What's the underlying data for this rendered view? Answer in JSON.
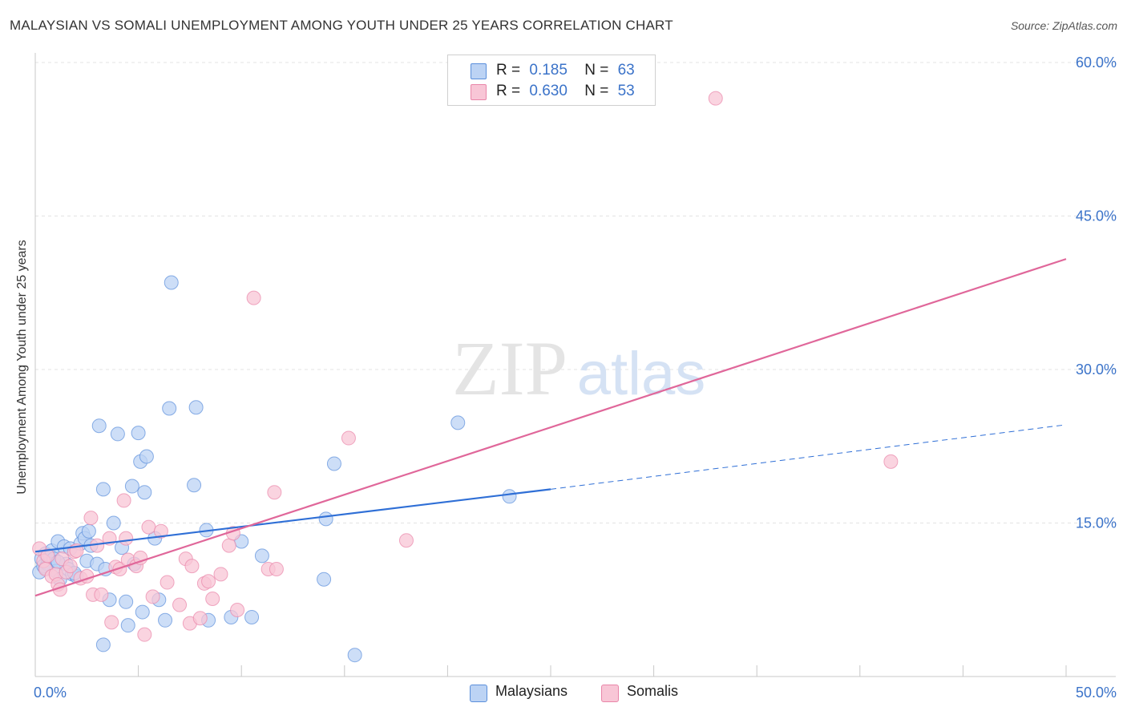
{
  "title": "MALAYSIAN VS SOMALI UNEMPLOYMENT AMONG YOUTH UNDER 25 YEARS CORRELATION CHART",
  "source": "Source: ZipAtlas.com",
  "watermark": {
    "zip": "ZIP",
    "atlas": "atlas"
  },
  "legend": {
    "malaysians": {
      "r_label": "R =",
      "r_value": "0.185",
      "n_label": "N =",
      "n_value": "63"
    },
    "somalis": {
      "r_label": "R =",
      "r_value": "0.630",
      "n_label": "N =",
      "n_value": "53"
    }
  },
  "bottom_legend": {
    "malaysians": "Malaysians",
    "somalis": "Somalis"
  },
  "chart_data": {
    "type": "scatter",
    "title": "MALAYSIAN VS SOMALI UNEMPLOYMENT AMONG YOUTH UNDER 25 YEARS CORRELATION CHART",
    "xlabel": "",
    "ylabel": "Unemployment Among Youth under 25 years",
    "xlim": [
      0,
      50
    ],
    "ylim": [
      0,
      60
    ],
    "x_tick_labels": [
      "0.0%",
      "50.0%"
    ],
    "y_tick_labels": [
      "15.0%",
      "30.0%",
      "45.0%",
      "60.0%"
    ],
    "y_ticks": [
      15,
      30,
      45,
      60
    ],
    "colors": {
      "malaysians": "#5b8fdb",
      "somalis": "#e986a9",
      "malaysians_fill": "#bcd3f4",
      "somalis_fill": "#f8c6d6",
      "tick_label": "#3b73c9"
    },
    "series": [
      {
        "name": "Malaysians",
        "points": [
          [
            0.2,
            10.2
          ],
          [
            0.3,
            11.5
          ],
          [
            0.4,
            10.8
          ],
          [
            0.5,
            12.0
          ],
          [
            0.6,
            11.0
          ],
          [
            0.7,
            11.8
          ],
          [
            0.8,
            12.3
          ],
          [
            0.9,
            11.5
          ],
          [
            1.0,
            10.3
          ],
          [
            1.1,
            13.2
          ],
          [
            1.2,
            9.5
          ],
          [
            1.4,
            12.7
          ],
          [
            1.5,
            11.0
          ],
          [
            1.6,
            10.5
          ],
          [
            1.7,
            12.5
          ],
          [
            1.8,
            10.0
          ],
          [
            2.0,
            9.8
          ],
          [
            2.2,
            13.0
          ],
          [
            2.3,
            14.0
          ],
          [
            2.4,
            13.5
          ],
          [
            2.5,
            11.3
          ],
          [
            2.6,
            14.2
          ],
          [
            2.7,
            12.8
          ],
          [
            3.0,
            11.0
          ],
          [
            3.1,
            24.5
          ],
          [
            3.3,
            18.3
          ],
          [
            3.4,
            10.5
          ],
          [
            3.6,
            7.5
          ],
          [
            3.8,
            15.0
          ],
          [
            4.0,
            23.7
          ],
          [
            4.2,
            12.6
          ],
          [
            4.4,
            7.3
          ],
          [
            4.5,
            5.0
          ],
          [
            4.7,
            18.6
          ],
          [
            4.8,
            11.0
          ],
          [
            5.0,
            23.8
          ],
          [
            5.1,
            21.0
          ],
          [
            5.2,
            6.3
          ],
          [
            5.3,
            18.0
          ],
          [
            5.4,
            21.5
          ],
          [
            5.8,
            13.5
          ],
          [
            6.0,
            7.5
          ],
          [
            6.3,
            5.5
          ],
          [
            6.5,
            26.2
          ],
          [
            6.6,
            38.5
          ],
          [
            7.7,
            18.7
          ],
          [
            7.8,
            26.3
          ],
          [
            8.3,
            14.3
          ],
          [
            8.4,
            5.5
          ],
          [
            9.5,
            5.8
          ],
          [
            10.0,
            13.2
          ],
          [
            10.5,
            5.8
          ],
          [
            11.0,
            11.8
          ],
          [
            14.0,
            9.5
          ],
          [
            14.1,
            15.4
          ],
          [
            14.5,
            20.8
          ],
          [
            15.5,
            2.1
          ],
          [
            20.5,
            24.8
          ],
          [
            23.0,
            17.6
          ],
          [
            1.9,
            10.1
          ],
          [
            0.5,
            10.6
          ],
          [
            1.1,
            11.2
          ],
          [
            3.3,
            3.1
          ]
        ]
      },
      {
        "name": "Somalis",
        "points": [
          [
            0.2,
            12.5
          ],
          [
            0.4,
            11.3
          ],
          [
            0.5,
            10.5
          ],
          [
            0.6,
            11.8
          ],
          [
            0.8,
            9.8
          ],
          [
            1.0,
            10.0
          ],
          [
            1.1,
            9.0
          ],
          [
            1.2,
            8.5
          ],
          [
            1.3,
            11.5
          ],
          [
            1.5,
            10.2
          ],
          [
            1.7,
            10.8
          ],
          [
            1.9,
            12.2
          ],
          [
            2.0,
            12.3
          ],
          [
            2.2,
            9.6
          ],
          [
            2.5,
            9.8
          ],
          [
            2.7,
            15.5
          ],
          [
            2.8,
            8.0
          ],
          [
            3.0,
            12.8
          ],
          [
            3.2,
            8.0
          ],
          [
            3.6,
            13.5
          ],
          [
            3.7,
            5.3
          ],
          [
            3.9,
            10.7
          ],
          [
            4.1,
            10.5
          ],
          [
            4.3,
            17.2
          ],
          [
            4.4,
            13.5
          ],
          [
            4.5,
            11.4
          ],
          [
            4.9,
            10.8
          ],
          [
            5.1,
            11.6
          ],
          [
            5.3,
            4.1
          ],
          [
            5.5,
            14.6
          ],
          [
            5.7,
            7.8
          ],
          [
            6.1,
            14.2
          ],
          [
            6.4,
            9.2
          ],
          [
            7.0,
            7.0
          ],
          [
            7.3,
            11.5
          ],
          [
            7.5,
            5.2
          ],
          [
            7.6,
            10.8
          ],
          [
            8.0,
            5.7
          ],
          [
            8.2,
            9.1
          ],
          [
            8.4,
            9.3
          ],
          [
            8.6,
            7.6
          ],
          [
            9.0,
            10.0
          ],
          [
            9.4,
            12.8
          ],
          [
            9.6,
            14.0
          ],
          [
            9.8,
            6.5
          ],
          [
            10.6,
            37.0
          ],
          [
            11.3,
            10.5
          ],
          [
            11.6,
            18.0
          ],
          [
            11.7,
            10.5
          ],
          [
            15.2,
            23.3
          ],
          [
            18.0,
            13.3
          ],
          [
            33.0,
            56.5
          ],
          [
            41.5,
            21.0
          ]
        ]
      }
    ],
    "trendlines": [
      {
        "series": "Malaysians",
        "solid": [
          [
            0,
            12.2
          ],
          [
            25,
            18.3
          ]
        ],
        "dashed": [
          [
            25,
            18.3
          ],
          [
            50,
            24.6
          ]
        ]
      },
      {
        "series": "Somalis",
        "solid": [
          [
            0,
            7.9
          ],
          [
            50,
            40.8
          ]
        ]
      }
    ]
  }
}
